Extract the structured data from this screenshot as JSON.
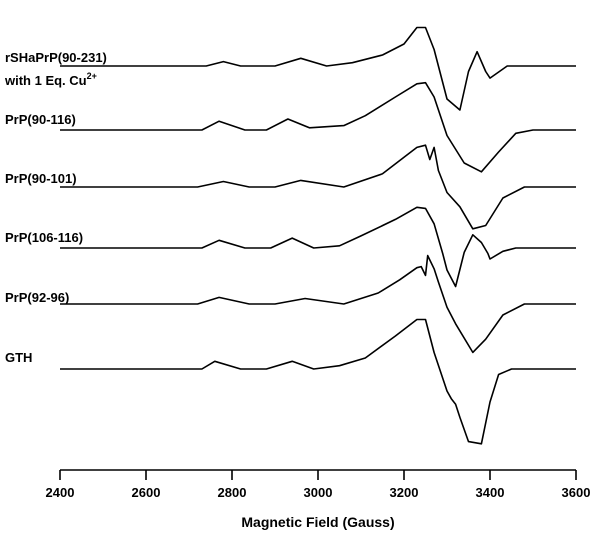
{
  "chart_data": {
    "type": "line",
    "title": "",
    "xlabel": "Magnetic Field (Gauss)",
    "ylabel": "",
    "xlim": [
      2400,
      3600
    ],
    "xticks": [
      2400,
      2600,
      2800,
      3000,
      3200,
      3400,
      3600
    ],
    "grid": false,
    "series": [
      {
        "name": "rSHaPrP(90-231)",
        "name_line2": "with 1 Eq. Cu",
        "name_sup": "2+",
        "points": [
          [
            2400,
            0
          ],
          [
            2740,
            0
          ],
          [
            2780,
            0.4
          ],
          [
            2820,
            0
          ],
          [
            2900,
            0
          ],
          [
            2960,
            0.7
          ],
          [
            3020,
            0
          ],
          [
            3080,
            0.3
          ],
          [
            3150,
            1
          ],
          [
            3200,
            2
          ],
          [
            3230,
            3.5
          ],
          [
            3250,
            3.5
          ],
          [
            3270,
            1.5
          ],
          [
            3300,
            -3
          ],
          [
            3330,
            -4
          ],
          [
            3350,
            -0.5
          ],
          [
            3370,
            1.3
          ],
          [
            3390,
            -0.5
          ],
          [
            3400,
            -1.1
          ],
          [
            3440,
            0
          ],
          [
            3600,
            0
          ]
        ]
      },
      {
        "name": "PrP(90-116)",
        "points": [
          [
            2400,
            0
          ],
          [
            2730,
            0
          ],
          [
            2770,
            0.8
          ],
          [
            2830,
            0
          ],
          [
            2880,
            0
          ],
          [
            2930,
            1
          ],
          [
            2980,
            0.2
          ],
          [
            3060,
            0.4
          ],
          [
            3110,
            1.3
          ],
          [
            3180,
            3
          ],
          [
            3230,
            4.2
          ],
          [
            3250,
            4.3
          ],
          [
            3270,
            3
          ],
          [
            3300,
            -0.5
          ],
          [
            3340,
            -3
          ],
          [
            3380,
            -3.8
          ],
          [
            3420,
            -2
          ],
          [
            3460,
            -0.3
          ],
          [
            3500,
            0
          ],
          [
            3600,
            0
          ]
        ]
      },
      {
        "name": "PrP(90-101)",
        "points": [
          [
            2400,
            0
          ],
          [
            2720,
            0
          ],
          [
            2780,
            0.5
          ],
          [
            2840,
            0
          ],
          [
            2900,
            0
          ],
          [
            2960,
            0.6
          ],
          [
            3060,
            0
          ],
          [
            3150,
            1.2
          ],
          [
            3200,
            2.7
          ],
          [
            3230,
            3.6
          ],
          [
            3250,
            3.8
          ],
          [
            3260,
            2.5
          ],
          [
            3270,
            3.6
          ],
          [
            3280,
            1.5
          ],
          [
            3300,
            -0.5
          ],
          [
            3330,
            -1.8
          ],
          [
            3360,
            -3.8
          ],
          [
            3390,
            -3.5
          ],
          [
            3430,
            -1
          ],
          [
            3480,
            0
          ],
          [
            3600,
            0
          ]
        ]
      },
      {
        "name": "PrP(106-116)",
        "points": [
          [
            2400,
            0
          ],
          [
            2730,
            0
          ],
          [
            2770,
            0.7
          ],
          [
            2830,
            0
          ],
          [
            2890,
            0
          ],
          [
            2940,
            0.9
          ],
          [
            2990,
            0
          ],
          [
            3050,
            0.2
          ],
          [
            3100,
            1.1
          ],
          [
            3180,
            2.6
          ],
          [
            3230,
            3.7
          ],
          [
            3250,
            3.6
          ],
          [
            3270,
            2.2
          ],
          [
            3290,
            -0.5
          ],
          [
            3300,
            -2
          ],
          [
            3320,
            -3.5
          ],
          [
            3340,
            -0.4
          ],
          [
            3360,
            1.2
          ],
          [
            3380,
            0.5
          ],
          [
            3395,
            -0.5
          ],
          [
            3400,
            -1
          ],
          [
            3430,
            -0.3
          ],
          [
            3460,
            0
          ],
          [
            3600,
            0
          ]
        ]
      },
      {
        "name": "PrP(92-96)",
        "points": [
          [
            2400,
            0
          ],
          [
            2720,
            0
          ],
          [
            2770,
            0.6
          ],
          [
            2840,
            0
          ],
          [
            2900,
            0
          ],
          [
            2970,
            0.5
          ],
          [
            3060,
            0
          ],
          [
            3140,
            1
          ],
          [
            3190,
            2.2
          ],
          [
            3230,
            3.3
          ],
          [
            3240,
            3.4
          ],
          [
            3250,
            2.6
          ],
          [
            3255,
            4.4
          ],
          [
            3270,
            3.2
          ],
          [
            3280,
            2
          ],
          [
            3300,
            -0.3
          ],
          [
            3320,
            -1.8
          ],
          [
            3360,
            -4.4
          ],
          [
            3390,
            -3.2
          ],
          [
            3430,
            -1
          ],
          [
            3480,
            0
          ],
          [
            3600,
            0
          ]
        ]
      },
      {
        "name": "GTH",
        "points": [
          [
            2400,
            0
          ],
          [
            2730,
            0
          ],
          [
            2760,
            0.7
          ],
          [
            2820,
            0
          ],
          [
            2880,
            0
          ],
          [
            2940,
            0.7
          ],
          [
            2990,
            0
          ],
          [
            3050,
            0.3
          ],
          [
            3110,
            1
          ],
          [
            3180,
            3
          ],
          [
            3230,
            4.5
          ],
          [
            3250,
            4.5
          ],
          [
            3270,
            1.5
          ],
          [
            3300,
            -2
          ],
          [
            3310,
            -2.7
          ],
          [
            3320,
            -3.2
          ],
          [
            3330,
            -4.4
          ],
          [
            3350,
            -6.6
          ],
          [
            3380,
            -6.8
          ],
          [
            3400,
            -3
          ],
          [
            3420,
            -0.5
          ],
          [
            3450,
            0
          ],
          [
            3600,
            0
          ]
        ]
      }
    ]
  }
}
